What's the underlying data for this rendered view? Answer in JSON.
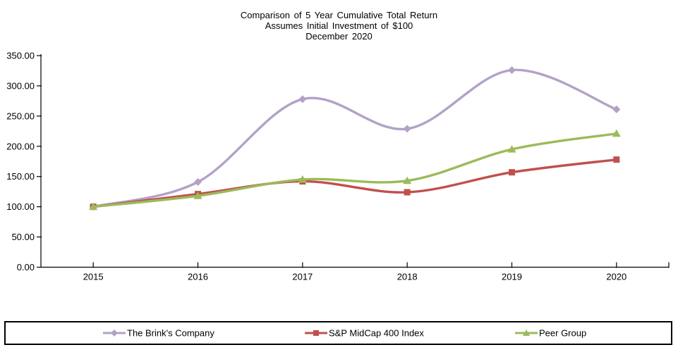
{
  "chart_data": {
    "type": "line",
    "smooth": true,
    "title": "Comparison of 5 Year Cumulative Total Return",
    "subtitle": "Assumes Initial Investment of $100",
    "date_line": "December 2020",
    "categories": [
      "2015",
      "2016",
      "2017",
      "2018",
      "2019",
      "2020"
    ],
    "series": [
      {
        "name": "The Brink's Company",
        "color": "#B2A2C7",
        "marker": "diamond",
        "values": [
          100,
          141,
          278,
          229,
          326,
          261
        ]
      },
      {
        "name": "S&P MidCap 400 Index",
        "color": "#C0504D",
        "marker": "square",
        "values": [
          100,
          121,
          142,
          124,
          157,
          178
        ]
      },
      {
        "name": "Peer Group",
        "color": "#9BBB59",
        "marker": "triangle",
        "values": [
          100,
          118,
          145,
          143,
          195,
          221
        ]
      }
    ],
    "ylim": [
      0,
      350
    ],
    "ytick_labels": [
      "0.00",
      "50.00",
      "100.00",
      "150.00",
      "200.00",
      "250.00",
      "300.00",
      "350.00"
    ],
    "grid": false,
    "legend_position": "bottom",
    "axis_color": "#000000",
    "background_color": "#FFFFFF"
  }
}
